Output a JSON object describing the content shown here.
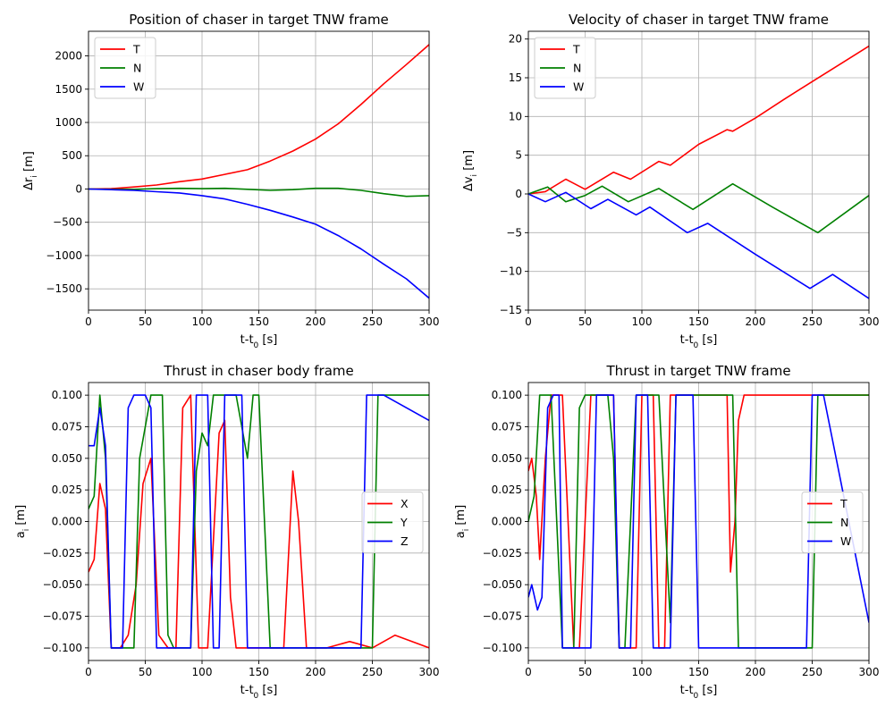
{
  "chart_data": [
    {
      "type": "line",
      "title": "Position of chaser in target TNW frame",
      "xlabel": "t-t",
      "xlabel_sub": "0",
      "xlabel_unit": " [s]",
      "ylabel": "Δr",
      "ylabel_sub": "i",
      "ylabel_unit": " [m]",
      "xlim": [
        0,
        300
      ],
      "ylim": [
        -1820,
        2370
      ],
      "xticks": [
        0,
        50,
        100,
        150,
        200,
        250,
        300
      ],
      "yticks": [
        -1500,
        -1000,
        -500,
        0,
        500,
        1000,
        1500,
        2000
      ],
      "grid": true,
      "legend_position": "upper-left",
      "series": [
        {
          "name": "T",
          "color": "#ff0000",
          "x": [
            0,
            20,
            40,
            60,
            80,
            100,
            120,
            140,
            160,
            180,
            200,
            220,
            240,
            260,
            280,
            300
          ],
          "y": [
            0,
            5,
            30,
            60,
            110,
            150,
            220,
            290,
            420,
            570,
            750,
            980,
            1270,
            1580,
            1870,
            2170
          ]
        },
        {
          "name": "N",
          "color": "#008000",
          "x": [
            0,
            20,
            40,
            60,
            80,
            100,
            120,
            140,
            160,
            180,
            200,
            220,
            240,
            260,
            280,
            300
          ],
          "y": [
            0,
            -5,
            -5,
            5,
            10,
            5,
            10,
            -5,
            -20,
            -10,
            10,
            10,
            -20,
            -70,
            -110,
            -100
          ]
        },
        {
          "name": "W",
          "color": "#0000ff",
          "x": [
            0,
            20,
            40,
            60,
            80,
            100,
            120,
            140,
            160,
            180,
            200,
            220,
            240,
            260,
            280,
            300
          ],
          "y": [
            0,
            -10,
            -20,
            -40,
            -60,
            -100,
            -150,
            -230,
            -320,
            -420,
            -530,
            -700,
            -900,
            -1130,
            -1350,
            -1640
          ]
        }
      ]
    },
    {
      "type": "line",
      "title": "Velocity of chaser in target TNW frame",
      "xlabel": "t-t",
      "xlabel_sub": "0",
      "xlabel_unit": " [s]",
      "ylabel": "Δv",
      "ylabel_sub": "i",
      "ylabel_unit": " [m]",
      "xlim": [
        0,
        300
      ],
      "ylim": [
        -15,
        21
      ],
      "xticks": [
        0,
        50,
        100,
        150,
        200,
        250,
        300
      ],
      "yticks": [
        -15,
        -10,
        -5,
        0,
        5,
        10,
        15,
        20
      ],
      "grid": true,
      "legend_position": "upper-left",
      "series": [
        {
          "name": "T",
          "color": "#ff0000",
          "x": [
            0,
            15,
            33,
            50,
            75,
            90,
            115,
            125,
            150,
            175,
            180,
            200,
            225,
            250,
            275,
            300
          ],
          "y": [
            0,
            0.3,
            1.9,
            0.6,
            2.8,
            1.9,
            4.2,
            3.7,
            6.4,
            8.3,
            8.1,
            9.8,
            12.2,
            14.5,
            16.8,
            19.1
          ]
        },
        {
          "name": "N",
          "color": "#008000",
          "x": [
            0,
            17,
            33,
            50,
            65,
            88,
            115,
            145,
            180,
            215,
            255,
            300
          ],
          "y": [
            0,
            0.9,
            -1.0,
            -0.2,
            1.0,
            -1.0,
            0.7,
            -2.0,
            1.3,
            -1.7,
            -5.0,
            -0.2
          ]
        },
        {
          "name": "W",
          "color": "#0000ff",
          "x": [
            0,
            15,
            33,
            55,
            70,
            95,
            107,
            140,
            158,
            200,
            248,
            268,
            300
          ],
          "y": [
            0,
            -1.0,
            0.2,
            -1.9,
            -0.7,
            -2.7,
            -1.7,
            -5.0,
            -3.8,
            -7.8,
            -12.2,
            -10.4,
            -13.5
          ]
        }
      ]
    },
    {
      "type": "line",
      "title": "Thrust in chaser body frame",
      "xlabel": "t-t",
      "xlabel_sub": "0",
      "xlabel_unit": " [s]",
      "ylabel": "a",
      "ylabel_sub": "i",
      "ylabel_unit": " [m]",
      "xlim": [
        0,
        300
      ],
      "ylim": [
        -0.11,
        0.11
      ],
      "xticks": [
        0,
        50,
        100,
        150,
        200,
        250,
        300
      ],
      "yticks": [
        -0.1,
        -0.075,
        -0.05,
        -0.025,
        0.0,
        0.025,
        0.05,
        0.075,
        0.1
      ],
      "ytick_labels": [
        "−0.100",
        "−0.075",
        "−0.050",
        "−0.025",
        "0.000",
        "0.025",
        "0.050",
        "0.075",
        "0.100"
      ],
      "grid": true,
      "legend_position": "center-right",
      "series": [
        {
          "name": "X",
          "color": "#ff0000",
          "x": [
            0,
            5,
            10,
            15,
            20,
            28,
            35,
            42,
            48,
            55,
            62,
            70,
            77,
            83,
            90,
            97,
            105,
            115,
            120,
            125,
            130,
            140,
            160,
            172,
            180,
            185,
            192,
            210,
            230,
            250,
            270,
            300
          ],
          "y": [
            -0.04,
            -0.03,
            0.03,
            0.01,
            -0.1,
            -0.1,
            -0.09,
            -0.05,
            0.03,
            0.05,
            -0.09,
            -0.1,
            -0.1,
            0.09,
            0.1,
            -0.1,
            -0.1,
            0.07,
            0.08,
            -0.06,
            -0.1,
            -0.1,
            -0.1,
            -0.1,
            0.04,
            0.0,
            -0.1,
            -0.1,
            -0.095,
            -0.1,
            -0.09,
            -0.1
          ]
        },
        {
          "name": "Y",
          "color": "#008000",
          "x": [
            0,
            5,
            10,
            15,
            20,
            30,
            40,
            45,
            55,
            60,
            65,
            70,
            75,
            80,
            90,
            95,
            100,
            105,
            110,
            115,
            130,
            140,
            145,
            150,
            160,
            180,
            200,
            220,
            250,
            255,
            260,
            300
          ],
          "y": [
            0.01,
            0.02,
            0.1,
            0.05,
            -0.1,
            -0.1,
            -0.1,
            0.05,
            0.1,
            0.1,
            0.1,
            -0.09,
            -0.1,
            -0.1,
            -0.1,
            0.04,
            0.07,
            0.06,
            0.1,
            0.1,
            0.1,
            0.05,
            0.1,
            0.1,
            -0.1,
            -0.1,
            -0.1,
            -0.1,
            -0.1,
            0.1,
            0.1,
            0.1
          ]
        },
        {
          "name": "Z",
          "color": "#0000ff",
          "x": [
            0,
            5,
            10,
            15,
            20,
            30,
            35,
            40,
            50,
            55,
            60,
            70,
            80,
            90,
            95,
            100,
            105,
            110,
            115,
            120,
            130,
            135,
            140,
            145,
            150,
            200,
            240,
            245,
            250,
            260,
            300
          ],
          "y": [
            0.06,
            0.06,
            0.09,
            0.06,
            -0.1,
            -0.1,
            0.09,
            0.1,
            0.1,
            0.09,
            -0.1,
            -0.1,
            -0.1,
            -0.1,
            0.1,
            0.1,
            0.1,
            -0.1,
            -0.1,
            0.1,
            0.1,
            0.1,
            -0.1,
            -0.1,
            -0.1,
            -0.1,
            -0.1,
            0.1,
            0.1,
            0.1,
            0.08
          ]
        }
      ]
    },
    {
      "type": "line",
      "title": "Thrust in target TNW frame",
      "xlabel": "t-t",
      "xlabel_sub": "0",
      "xlabel_unit": " [s]",
      "ylabel": "a",
      "ylabel_sub": "i",
      "ylabel_unit": " [m]",
      "xlim": [
        0,
        300
      ],
      "ylim": [
        -0.11,
        0.11
      ],
      "xticks": [
        0,
        50,
        100,
        150,
        200,
        250,
        300
      ],
      "yticks": [
        -0.1,
        -0.075,
        -0.05,
        -0.025,
        0.0,
        0.025,
        0.05,
        0.075,
        0.1
      ],
      "ytick_labels": [
        "−0.100",
        "−0.075",
        "−0.050",
        "−0.025",
        "0.000",
        "0.025",
        "0.050",
        "0.075",
        "0.100"
      ],
      "grid": true,
      "legend_position": "center-right",
      "series": [
        {
          "name": "T",
          "color": "#ff0000",
          "x": [
            0,
            3,
            7,
            10,
            15,
            20,
            25,
            30,
            40,
            45,
            55,
            60,
            70,
            75,
            80,
            85,
            95,
            100,
            110,
            115,
            120,
            125,
            130,
            150,
            175,
            178,
            182,
            185,
            190,
            200,
            250,
            300
          ],
          "y": [
            0.04,
            0.05,
            0.02,
            -0.03,
            0.05,
            0.1,
            0.1,
            0.1,
            -0.1,
            -0.1,
            0.1,
            0.1,
            0.1,
            0.1,
            -0.1,
            -0.1,
            -0.1,
            0.1,
            0.1,
            -0.1,
            -0.1,
            0.1,
            0.1,
            0.1,
            0.1,
            -0.04,
            0.0,
            0.08,
            0.1,
            0.1,
            0.1,
            0.1
          ]
        },
        {
          "name": "N",
          "color": "#008000",
          "x": [
            0,
            5,
            10,
            15,
            20,
            30,
            40,
            45,
            50,
            60,
            70,
            75,
            80,
            85,
            95,
            100,
            105,
            115,
            125,
            130,
            145,
            150,
            175,
            180,
            185,
            190,
            250,
            255,
            260,
            300
          ],
          "y": [
            0.0,
            0.02,
            0.1,
            0.1,
            0.1,
            -0.1,
            -0.1,
            0.09,
            0.1,
            0.1,
            0.1,
            0.05,
            -0.1,
            -0.1,
            0.1,
            0.1,
            0.1,
            0.1,
            -0.08,
            0.1,
            0.1,
            0.1,
            0.1,
            0.1,
            -0.1,
            -0.1,
            -0.1,
            0.1,
            0.1,
            0.1
          ]
        },
        {
          "name": "W",
          "color": "#0000ff",
          "x": [
            0,
            3,
            8,
            12,
            17,
            22,
            27,
            30,
            35,
            40,
            55,
            60,
            70,
            75,
            80,
            90,
            95,
            100,
            105,
            110,
            115,
            125,
            130,
            145,
            150,
            160,
            200,
            230,
            245,
            250,
            260,
            300
          ],
          "y": [
            -0.06,
            -0.05,
            -0.07,
            -0.06,
            0.09,
            0.1,
            0.1,
            -0.1,
            -0.1,
            -0.1,
            -0.1,
            0.1,
            0.1,
            0.1,
            -0.1,
            -0.1,
            0.1,
            0.1,
            0.1,
            -0.1,
            -0.1,
            -0.1,
            0.1,
            0.1,
            -0.1,
            -0.1,
            -0.1,
            -0.1,
            -0.1,
            0.1,
            0.1,
            -0.08
          ]
        }
      ]
    }
  ]
}
